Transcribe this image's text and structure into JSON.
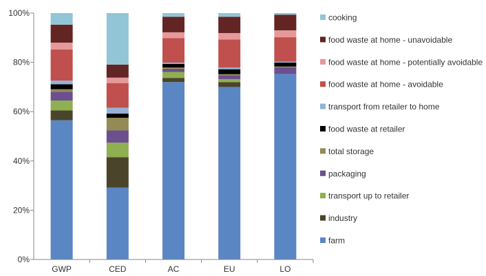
{
  "chart_data": {
    "type": "bar",
    "stacked": true,
    "title": "",
    "xlabel": "",
    "ylabel": "",
    "ylim": [
      0,
      100
    ],
    "yticks": [
      {
        "value": 0,
        "label": "0%"
      },
      {
        "value": 20,
        "label": "20%"
      },
      {
        "value": 40,
        "label": "40%"
      },
      {
        "value": 60,
        "label": "60%"
      },
      {
        "value": 80,
        "label": "80%"
      },
      {
        "value": 100,
        "label": "100%"
      }
    ],
    "categories": [
      "GWP",
      "CED",
      "AC",
      "EU",
      "LO"
    ],
    "grid": false,
    "legend_position": "right",
    "series": [
      {
        "name": "farm",
        "color": "#5b86c4",
        "values": [
          56.5,
          29.2,
          72.0,
          70.0,
          75.3
        ]
      },
      {
        "name": "industry",
        "color": "#4a452a",
        "values": [
          4.0,
          12.3,
          1.7,
          2.0,
          0.0
        ]
      },
      {
        "name": "transport up to retailer",
        "color": "#8fb050",
        "values": [
          4.0,
          5.9,
          2.4,
          1.2,
          0.0
        ]
      },
      {
        "name": "packaging",
        "color": "#6b4f8e",
        "values": [
          3.6,
          5.0,
          1.3,
          1.5,
          2.7
        ]
      },
      {
        "name": "total storage",
        "color": "#948a54",
        "values": [
          1.0,
          5.1,
          0.5,
          0.5,
          0.3
        ]
      },
      {
        "name": "food waste at retailer",
        "color": "#000000",
        "values": [
          2.0,
          1.7,
          1.5,
          2.0,
          1.6
        ]
      },
      {
        "name": "transport from retailer to home",
        "color": "#95b3d7",
        "values": [
          1.5,
          2.4,
          0.5,
          0.7,
          0.4
        ]
      },
      {
        "name": "food waste at home - avoidable",
        "color": "#c0504d",
        "values": [
          12.6,
          10.0,
          9.9,
          11.4,
          9.9
        ]
      },
      {
        "name": "food waste at home - potentially avoidable",
        "color": "#e6999a",
        "values": [
          2.8,
          2.2,
          2.4,
          2.6,
          2.8
        ]
      },
      {
        "name": "food waste at home - unavoidable",
        "color": "#632523",
        "values": [
          7.3,
          5.3,
          6.3,
          6.6,
          6.3
        ]
      },
      {
        "name": "cooking",
        "color": "#92c5d6",
        "values": [
          4.7,
          20.9,
          1.5,
          1.5,
          0.7
        ]
      }
    ]
  }
}
